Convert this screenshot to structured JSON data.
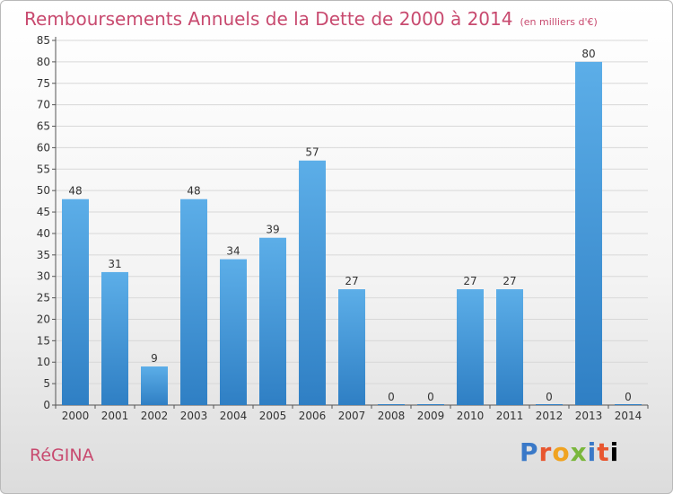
{
  "header": {
    "title": "Remboursements Annuels de la Dette de 2000 à 2014",
    "subtitle": "(en milliers d'€)"
  },
  "footer": {
    "commune": "RéGINA",
    "brand_letters": [
      "P",
      "r",
      "o",
      "x",
      "i",
      "t",
      "i"
    ]
  },
  "colors": {
    "title": "#c84a6f",
    "bar_top": "#5caee8",
    "bar_bottom": "#2f7fc4",
    "grid": "#d8d8d8"
  },
  "chart_data": {
    "type": "bar",
    "categories": [
      "2000",
      "2001",
      "2002",
      "2003",
      "2004",
      "2005",
      "2006",
      "2007",
      "2008",
      "2009",
      "2010",
      "2011",
      "2012",
      "2013",
      "2014"
    ],
    "values": [
      48,
      31,
      9,
      48,
      34,
      39,
      57,
      27,
      0,
      0,
      27,
      27,
      0,
      80,
      0
    ],
    "data_labels": [
      "48",
      "31",
      "9",
      "48",
      "34",
      "39",
      "57",
      "27",
      "0",
      "0",
      "27",
      "27",
      "0",
      "80",
      "0"
    ],
    "y_ticks": [
      "0",
      "5",
      "10",
      "15",
      "20",
      "25",
      "30",
      "35",
      "40",
      "45",
      "50",
      "55",
      "60",
      "65",
      "70",
      "75",
      "80",
      "85"
    ],
    "ylim": [
      0,
      85
    ],
    "grid": true,
    "legend": "none"
  }
}
